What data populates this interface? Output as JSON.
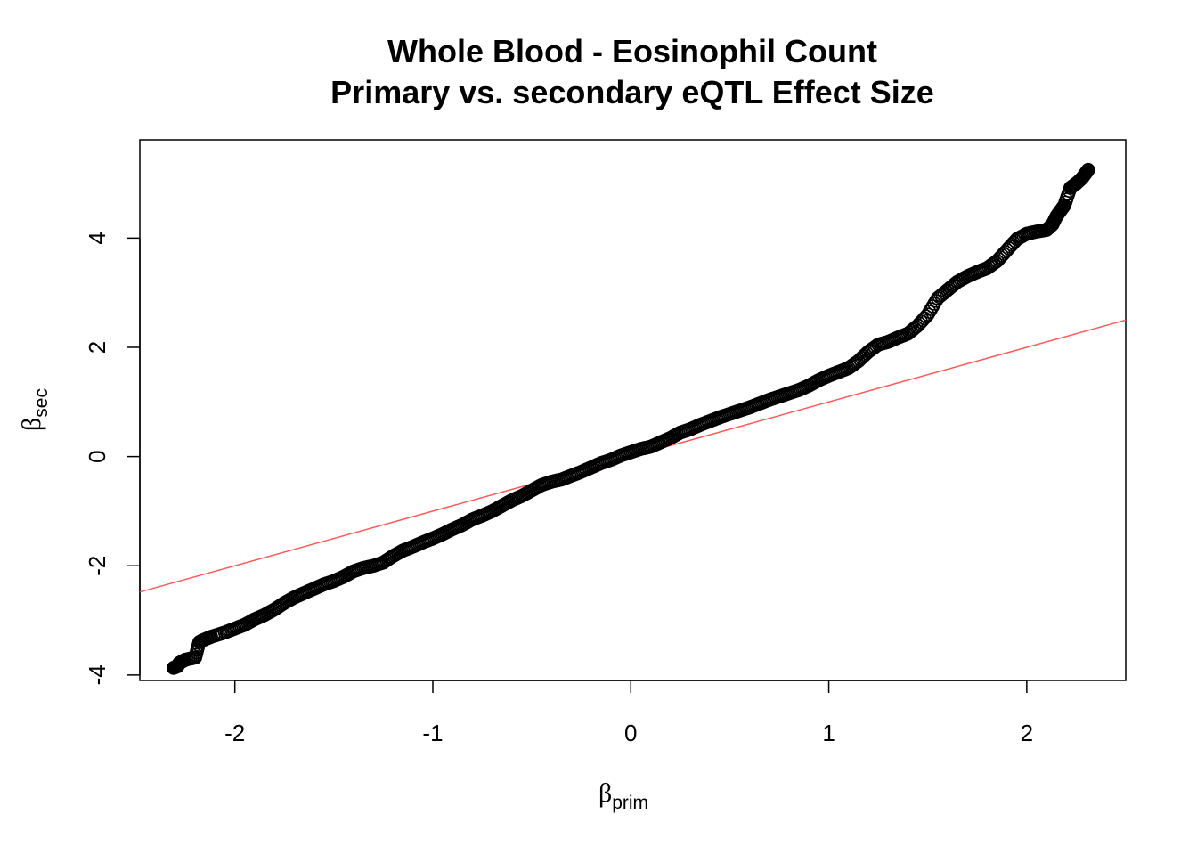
{
  "chart_data": {
    "type": "scatter",
    "title": "Whole Blood - Eosinophil Count",
    "subtitle": "Primary vs. secondary eQTL Effect Size",
    "xlabel": {
      "symbol": "β",
      "subscript": "prim"
    },
    "ylabel": {
      "symbol": "β",
      "subscript": "sec"
    },
    "xlim": [
      -2.48,
      2.5
    ],
    "ylim": [
      -4.1,
      5.8
    ],
    "x_ticks": [
      -2,
      -1,
      0,
      1,
      2
    ],
    "x_tick_labels": [
      "-2",
      "-1",
      "0",
      "1",
      "2"
    ],
    "y_ticks": [
      -4,
      -2,
      0,
      2,
      4
    ],
    "y_tick_labels": [
      "-4",
      "-2",
      "0",
      "2",
      "4"
    ],
    "grid": false,
    "legend": "none",
    "point_style": "open-circle",
    "point_color": "#000000",
    "reference_line": {
      "slope": 1,
      "intercept": 0,
      "color": "#ff5a5a"
    },
    "series": [
      {
        "x": [
          -2.31,
          -2.29,
          -2.28,
          -2.25,
          -2.2,
          -2.18,
          -2.16,
          -2.12,
          -2.05,
          -2.0,
          -1.95,
          -1.9,
          -1.85,
          -1.8,
          -1.75,
          -1.7,
          -1.65,
          -1.6,
          -1.55,
          -1.5,
          -1.45,
          -1.4,
          -1.35,
          -1.3,
          -1.25,
          -1.2,
          -1.15,
          -1.1,
          -1.05,
          -1.0,
          -0.95,
          -0.9,
          -0.85,
          -0.8,
          -0.75,
          -0.7,
          -0.65,
          -0.6,
          -0.55,
          -0.5,
          -0.45,
          -0.4,
          -0.35,
          -0.3,
          -0.25,
          -0.2,
          -0.15,
          -0.1,
          -0.05,
          0.0,
          0.05,
          0.1,
          0.15,
          0.2,
          0.25,
          0.3,
          0.35,
          0.4,
          0.45,
          0.5,
          0.55,
          0.6,
          0.65,
          0.7,
          0.75,
          0.8,
          0.85,
          0.9,
          0.95,
          1.0,
          1.05,
          1.1,
          1.15,
          1.2,
          1.25,
          1.3,
          1.35,
          1.4,
          1.45,
          1.5,
          1.55,
          1.6,
          1.65,
          1.7,
          1.75,
          1.8,
          1.85,
          1.9,
          1.95,
          2.0,
          2.05,
          2.1,
          2.13,
          2.15,
          2.17,
          2.19,
          2.22,
          2.25,
          2.28,
          2.3,
          2.31
        ],
        "y": [
          -3.87,
          -3.84,
          -3.78,
          -3.72,
          -3.68,
          -3.4,
          -3.36,
          -3.3,
          -3.22,
          -3.15,
          -3.08,
          -2.98,
          -2.9,
          -2.8,
          -2.68,
          -2.58,
          -2.5,
          -2.42,
          -2.34,
          -2.28,
          -2.2,
          -2.1,
          -2.04,
          -2.0,
          -1.94,
          -1.82,
          -1.72,
          -1.65,
          -1.57,
          -1.5,
          -1.42,
          -1.33,
          -1.25,
          -1.15,
          -1.08,
          -1.0,
          -0.9,
          -0.8,
          -0.72,
          -0.62,
          -0.52,
          -0.46,
          -0.42,
          -0.35,
          -0.28,
          -0.2,
          -0.12,
          -0.06,
          0.02,
          0.08,
          0.14,
          0.18,
          0.26,
          0.34,
          0.44,
          0.5,
          0.58,
          0.65,
          0.72,
          0.78,
          0.84,
          0.9,
          0.97,
          1.04,
          1.1,
          1.16,
          1.22,
          1.3,
          1.4,
          1.48,
          1.55,
          1.62,
          1.75,
          1.92,
          2.05,
          2.1,
          2.18,
          2.25,
          2.4,
          2.6,
          2.9,
          3.05,
          3.2,
          3.3,
          3.38,
          3.45,
          3.58,
          3.78,
          3.98,
          4.08,
          4.12,
          4.15,
          4.25,
          4.4,
          4.5,
          4.6,
          4.92,
          5.0,
          5.1,
          5.2,
          5.25
        ]
      }
    ]
  }
}
